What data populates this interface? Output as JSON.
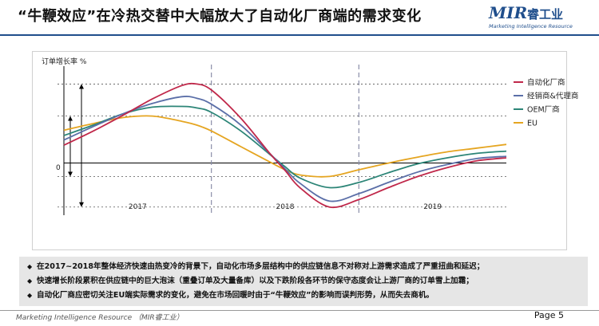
{
  "slide": {
    "title": "“牛鞭效应”在冷热交替中大幅放大了自动化厂商端的需求变化",
    "logo_main": "MIR",
    "logo_cn": "睿工业",
    "logo_sub": "Marketing Intelligence Resource",
    "footer_left": "Marketing Intelligence Resource （MIR睿工业）",
    "page_label": "Page 5"
  },
  "bullets": [
    "在2017~2018年整体经济快速由热变冷的背景下，自动化市场多层结构中的供应链信息不对称对上游需求造成了严重扭曲和延迟；",
    "快速增长阶段累积在供应链中的巨大泡沫（重叠订单及大量备库）以及下跌阶段各环节的保守态度会让上游厂商的订单雪上加霜；",
    "自动化厂商应密切关注EU端实际需求的变化，避免在市场回暖时由于“牛鞭效应”的影响而误判形势，从而失去商机。"
  ],
  "colors": {
    "automation": "#c0284a",
    "distributor": "#5b6fa8",
    "oem": "#2c8577",
    "eu": "#e5a521",
    "brand_blue": "#1f4e8c"
  },
  "chart_data": {
    "type": "line",
    "ylabel": "订单增长率 %",
    "y_zero_label": "0",
    "period_labels": [
      "2017",
      "2018",
      "2019"
    ],
    "period_bounds": [
      0,
      1,
      2,
      3
    ],
    "xlim": [
      0,
      3
    ],
    "ylim": [
      -7,
      13
    ],
    "x": [
      0,
      0.2,
      0.4,
      0.6,
      0.8,
      0.9,
      1.0,
      1.2,
      1.4,
      1.5,
      1.6,
      1.8,
      2.0,
      2.2,
      2.4,
      2.6,
      2.8,
      3.0
    ],
    "series": [
      {
        "name": "自动化厂商",
        "color_key": "automation",
        "values": [
          2.4,
          4.3,
          6.4,
          8.6,
          10.4,
          10.6,
          9.8,
          6.0,
          1.2,
          -1.0,
          -3.3,
          -5.9,
          -4.9,
          -3.3,
          -1.8,
          -0.6,
          0.3,
          0.7
        ]
      },
      {
        "name": "经销商&代理商",
        "color_key": "distributor",
        "values": [
          3.1,
          4.9,
          6.6,
          8.0,
          8.9,
          8.7,
          7.9,
          5.1,
          1.2,
          -0.8,
          -2.7,
          -5.1,
          -4.1,
          -2.6,
          -1.2,
          -0.2,
          0.6,
          0.9
        ]
      },
      {
        "name": "OEM厂商",
        "color_key": "oem",
        "values": [
          3.7,
          5.1,
          6.6,
          7.5,
          7.6,
          7.4,
          6.8,
          4.3,
          1.1,
          -0.5,
          -2.0,
          -3.3,
          -2.6,
          -1.3,
          -0.1,
          0.7,
          1.3,
          1.6
        ]
      },
      {
        "name": "EU",
        "color_key": "eu",
        "values": [
          4.4,
          5.3,
          6.1,
          6.3,
          5.6,
          5.1,
          4.3,
          2.2,
          0.1,
          -0.9,
          -1.6,
          -1.8,
          -0.9,
          0.0,
          0.8,
          1.5,
          2.0,
          2.5
        ]
      }
    ],
    "grid": false,
    "legend_position": "right"
  }
}
